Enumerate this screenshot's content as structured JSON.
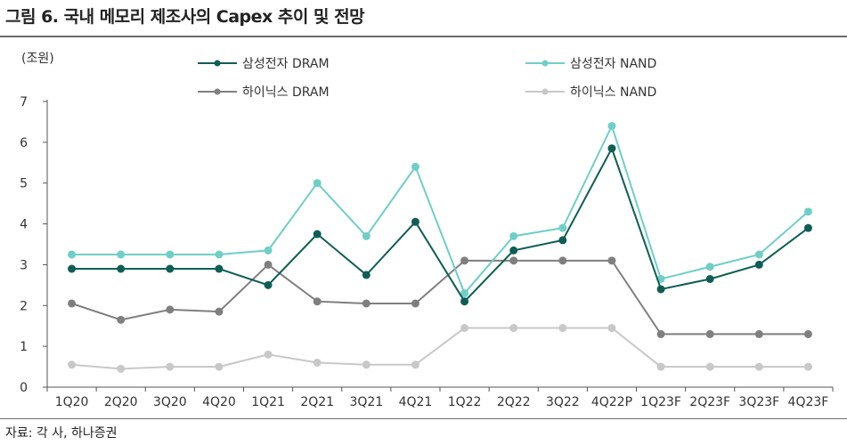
{
  "figure": {
    "title": "그림 6. 국내 메모리 제조사의 Capex 추이 및 전망",
    "source": "자료: 각 사, 하나증권"
  },
  "chart_data": {
    "type": "line",
    "unit_label": "(조원)",
    "categories": [
      "1Q20",
      "2Q20",
      "3Q20",
      "4Q20",
      "1Q21",
      "2Q21",
      "3Q21",
      "4Q21",
      "1Q22",
      "2Q22",
      "3Q22",
      "4Q22P",
      "1Q23F",
      "2Q23F",
      "3Q23F",
      "4Q23F"
    ],
    "ylim": [
      0,
      7
    ],
    "yticks": [
      0,
      1,
      2,
      3,
      4,
      5,
      6,
      7
    ],
    "grid": false,
    "legend_position": "top",
    "series": [
      {
        "name": "삼성전자 DRAM",
        "color": "#0f5e54",
        "values": [
          2.9,
          2.9,
          2.9,
          2.9,
          2.5,
          3.75,
          2.75,
          4.05,
          2.1,
          3.35,
          3.6,
          5.85,
          2.4,
          2.65,
          3.0,
          3.9
        ]
      },
      {
        "name": "삼성전자 NAND",
        "color": "#6fcfc6",
        "values": [
          3.25,
          3.25,
          3.25,
          3.25,
          3.35,
          5.0,
          3.7,
          5.4,
          2.3,
          3.7,
          3.9,
          6.4,
          2.65,
          2.95,
          3.25,
          4.3
        ]
      },
      {
        "name": "하이닉스 DRAM",
        "color": "#7f7f7f",
        "values": [
          2.05,
          1.65,
          1.9,
          1.85,
          3.0,
          2.1,
          2.05,
          2.05,
          3.1,
          3.1,
          3.1,
          3.1,
          1.3,
          1.3,
          1.3,
          1.3
        ]
      },
      {
        "name": "하이닉스 NAND",
        "color": "#c8c8c8",
        "values": [
          0.55,
          0.45,
          0.5,
          0.5,
          0.8,
          0.6,
          0.55,
          0.55,
          1.45,
          1.45,
          1.45,
          1.45,
          0.5,
          0.5,
          0.5,
          0.5
        ]
      }
    ]
  }
}
